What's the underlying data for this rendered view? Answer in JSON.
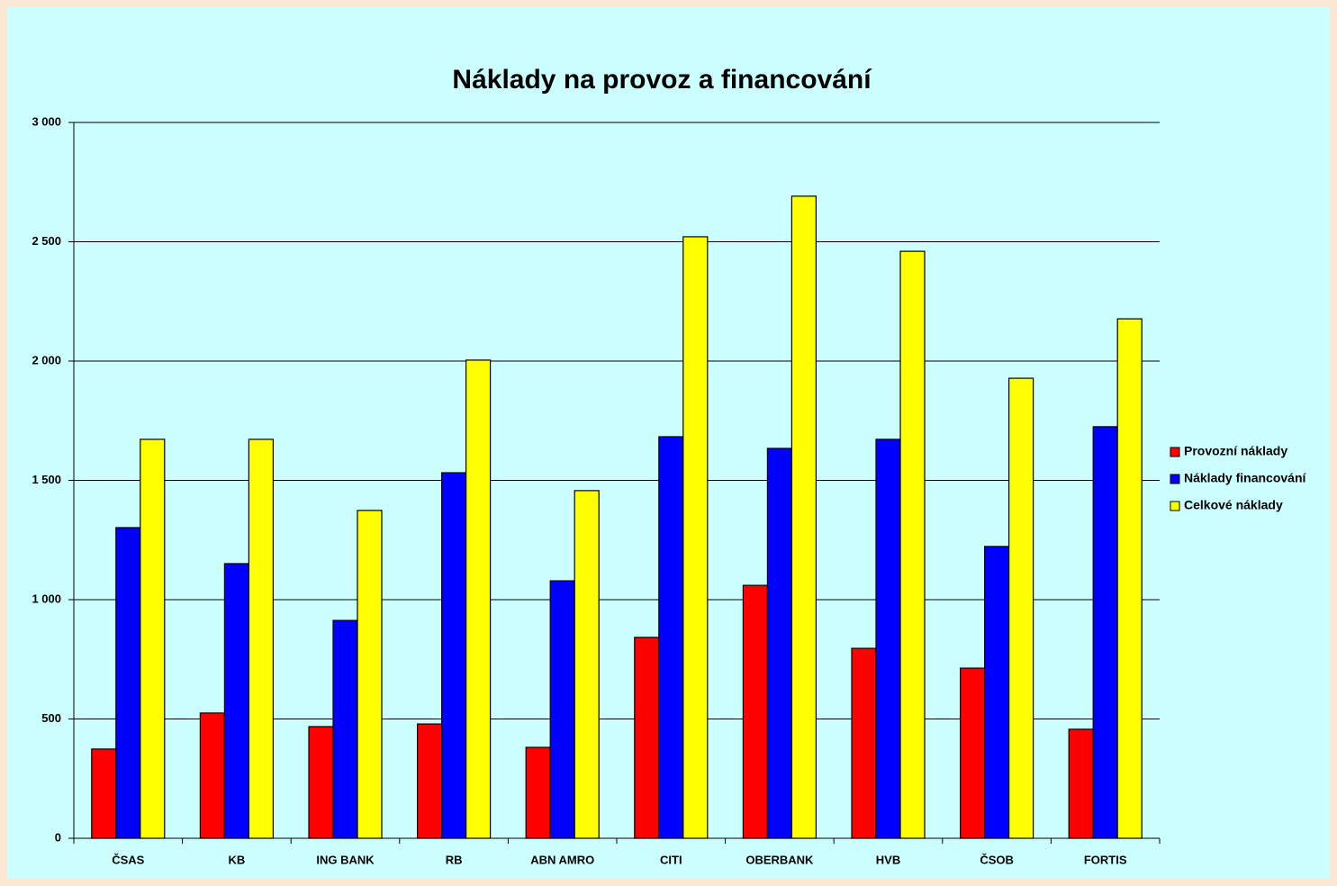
{
  "chart_data": {
    "type": "bar",
    "title": "Náklady na provoz a financování",
    "categories": [
      "ČSAS",
      "KB",
      "ING BANK",
      "RB",
      "ABN AMRO",
      "CITI",
      "OBERBANK",
      "HVB",
      "ČSOB",
      "FORTIS"
    ],
    "series": [
      {
        "name": "Provozní náklady",
        "color": "#ff0000",
        "values": [
          374,
          525,
          468,
          479,
          381,
          842,
          1060,
          796,
          713,
          457
        ]
      },
      {
        "name": "Náklady financování",
        "color": "#0000ff",
        "values": [
          1302,
          1151,
          913,
          1532,
          1079,
          1683,
          1634,
          1672,
          1223,
          1725
        ]
      },
      {
        "name": "Celkové náklady",
        "color": "#ffff00",
        "values": [
          1672,
          1672,
          1374,
          2004,
          1457,
          2521,
          2691,
          2460,
          1928,
          2177
        ]
      }
    ],
    "ylim": [
      0,
      3000
    ],
    "yticks": [
      0,
      500,
      {
        "value": 1000,
        "label": "1 000"
      },
      {
        "value": 1500,
        "label": "1 500"
      },
      {
        "value": 2000,
        "label": "2 000"
      },
      {
        "value": 2500,
        "label": "2 500"
      },
      {
        "value": 3000,
        "label": "3 000"
      }
    ],
    "grid": true,
    "legend": "right"
  }
}
